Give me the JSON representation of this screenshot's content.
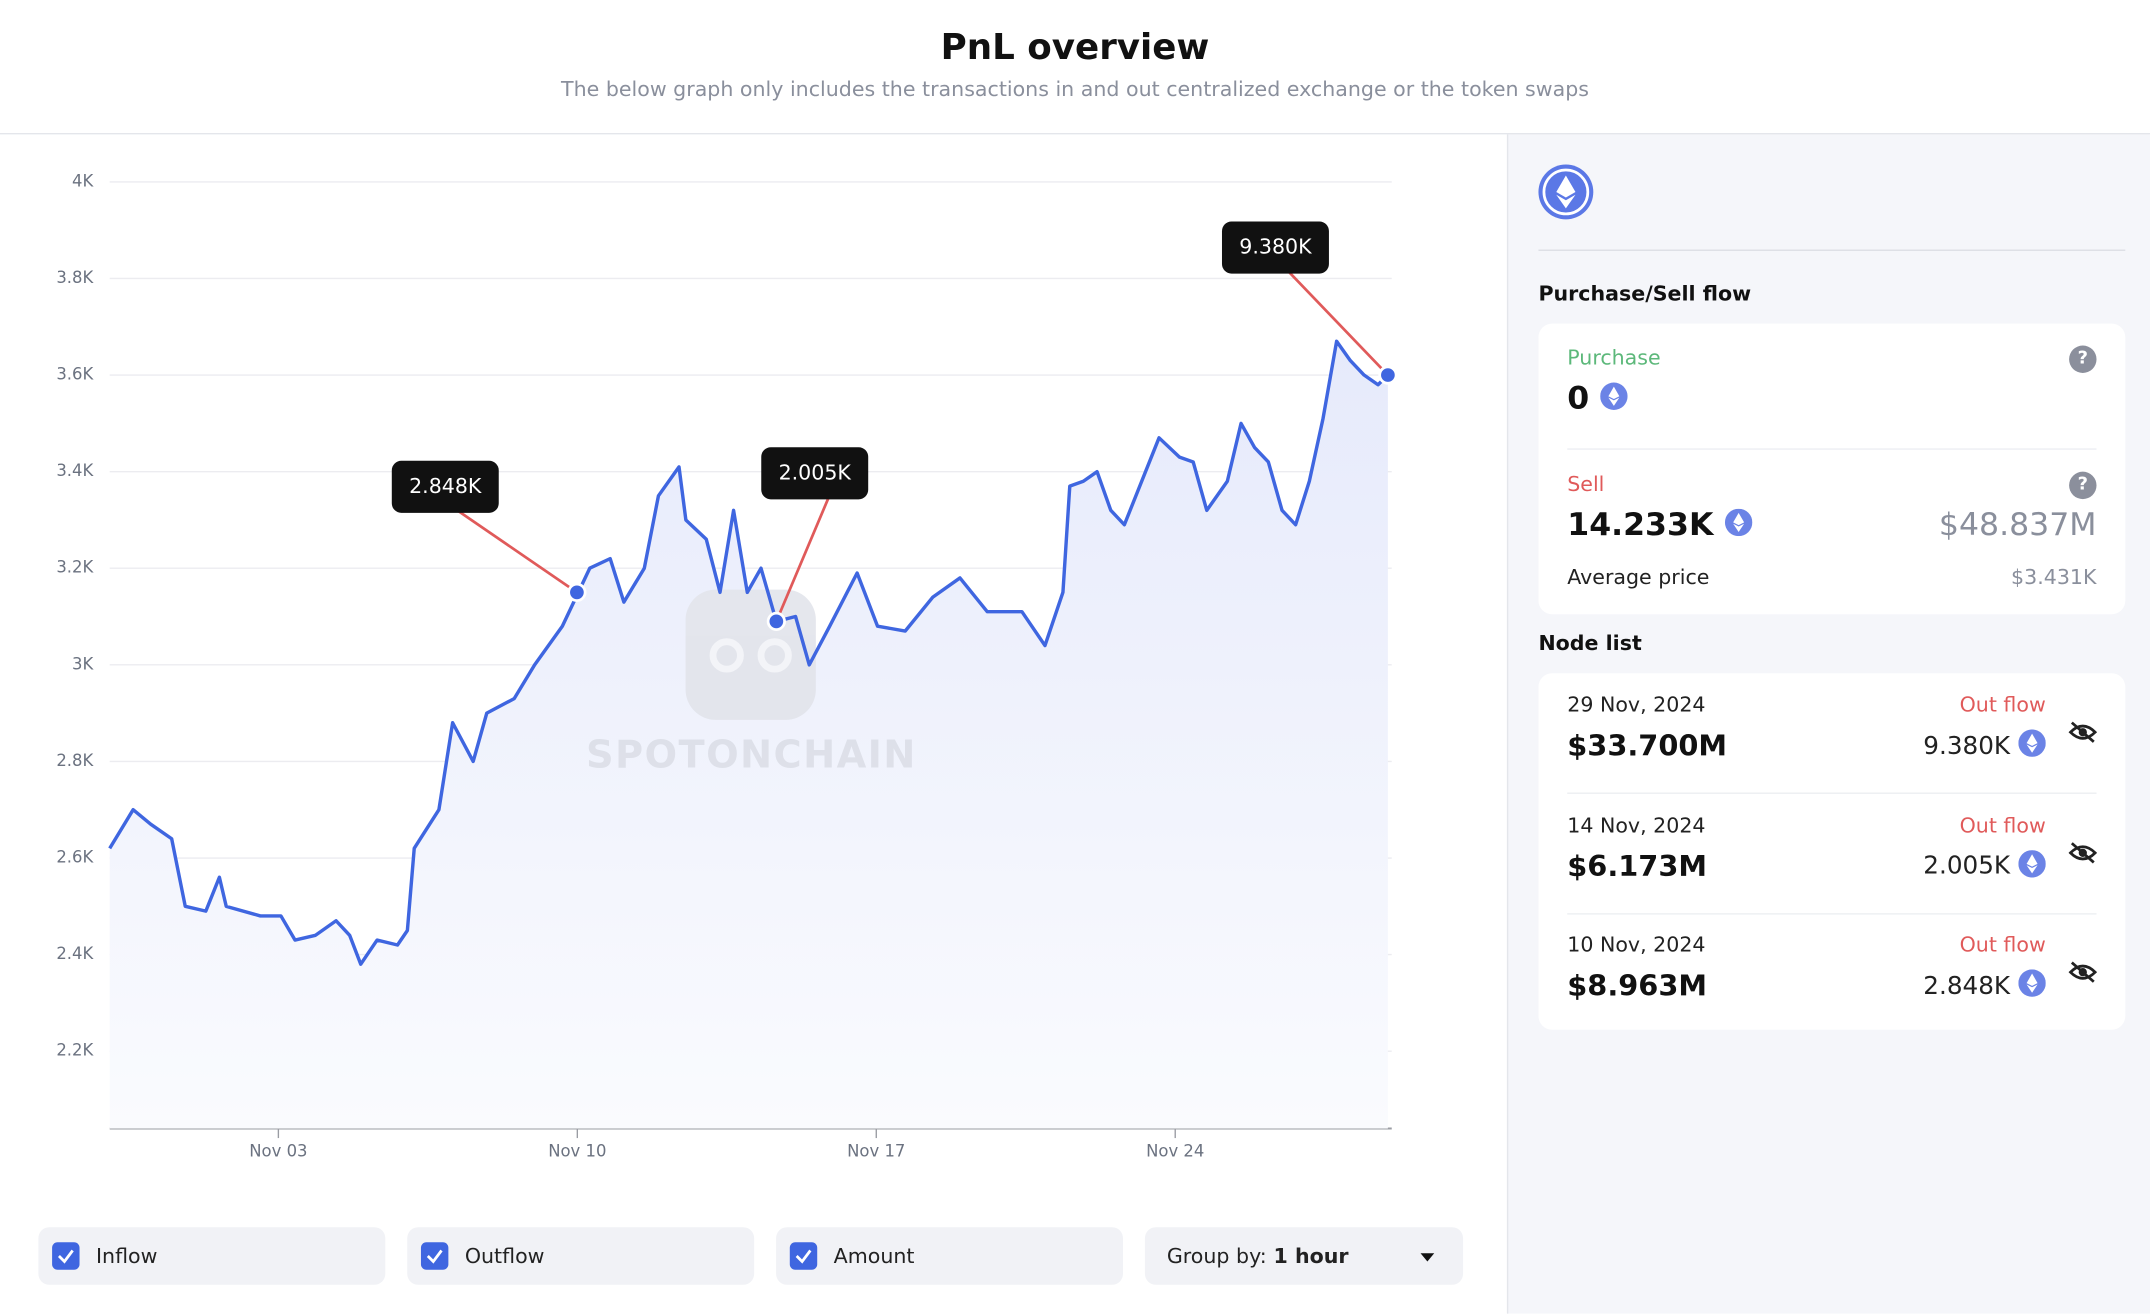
{
  "header": {
    "title": "PnL overview",
    "subtitle": "The below graph only includes the transactions in and out centralized exchange or the token swaps"
  },
  "chart_data": {
    "type": "line",
    "watermark": "SPOTONCHAIN",
    "color": "#3f66e0",
    "grid": true,
    "x": [
      -0.95,
      -0.4,
      0.01,
      0.5,
      0.82,
      1.3,
      1.62,
      1.78,
      2.58,
      3.06,
      3.39,
      3.87,
      4.35,
      4.67,
      4.93,
      5.31,
      5.79,
      6.02,
      6.18,
      6.76,
      7.08,
      7.56,
      7.88,
      8.52,
      9.0,
      9.65,
      9.97,
      10.29,
      10.77,
      11.09,
      11.57,
      11.9,
      12.38,
      12.54,
      13.02,
      13.34,
      13.66,
      13.98,
      14.3,
      14.66,
      15.11,
      15.43,
      15.91,
      16.55,
      17.03,
      17.68,
      18.32,
      18.96,
      19.6,
      20.41,
      20.95,
      21.37,
      21.53,
      21.85,
      22.17,
      22.49,
      22.81,
      23.62,
      24.1,
      24.42,
      24.74,
      25.22,
      25.54,
      25.86,
      26.18,
      26.5,
      26.82,
      27.14,
      27.46,
      27.78,
      28.1,
      28.42,
      28.75,
      28.98
    ],
    "values": [
      2620,
      2700,
      2670,
      2640,
      2500,
      2490,
      2560,
      2500,
      2480,
      2480,
      2430,
      2440,
      2470,
      2440,
      2380,
      2430,
      2420,
      2450,
      2620,
      2700,
      2880,
      2800,
      2900,
      2930,
      3000,
      3080,
      3140,
      3200,
      3220,
      3130,
      3200,
      3350,
      3410,
      3300,
      3260,
      3150,
      3320,
      3150,
      3200,
      3090,
      3100,
      3000,
      3080,
      3190,
      3080,
      3070,
      3140,
      3180,
      3110,
      3110,
      3040,
      3150,
      3370,
      3380,
      3400,
      3320,
      3290,
      3470,
      3430,
      3420,
      3320,
      3380,
      3500,
      3450,
      3420,
      3320,
      3290,
      3380,
      3510,
      3670,
      3630,
      3600,
      3580,
      3600
    ],
    "xlim": [
      -0.95,
      29.07
    ],
    "xticks": [
      {
        "value": 3,
        "label": "Nov 03"
      },
      {
        "value": 10,
        "label": "Nov 10"
      },
      {
        "value": 17,
        "label": "Nov 17"
      },
      {
        "value": 24,
        "label": "Nov 24"
      }
    ],
    "ylim": [
      2040,
      4020
    ],
    "yticks": [
      {
        "value": 2200,
        "label": "2.2K"
      },
      {
        "value": 2400,
        "label": "2.4K"
      },
      {
        "value": 2600,
        "label": "2.6K"
      },
      {
        "value": 2800,
        "label": "2.8K"
      },
      {
        "value": 3000,
        "label": "3K"
      },
      {
        "value": 3200,
        "label": "3.2K"
      },
      {
        "value": 3400,
        "label": "3.4K"
      },
      {
        "value": 3600,
        "label": "3.6K"
      },
      {
        "value": 3800,
        "label": "3.8K"
      },
      {
        "value": 4000,
        "label": "4K"
      }
    ],
    "annotations": [
      {
        "x": 9.99,
        "y": 3150,
        "label": "2.848K"
      },
      {
        "x": 14.66,
        "y": 3090,
        "label": "2.005K"
      },
      {
        "x": 28.98,
        "y": 3600,
        "label": "9.380K"
      }
    ]
  },
  "controls": {
    "checkboxes": [
      "Inflow",
      "Outflow",
      "Amount"
    ],
    "group_by_label": "Group by:",
    "group_by_value": "1 hour"
  },
  "panel": {
    "flow_title": "Purchase/Sell flow",
    "purchase_label": "Purchase",
    "purchase_amount": "0",
    "sell_label": "Sell",
    "sell_amount": "14.233K",
    "sell_value": "$48.837M",
    "avg_label": "Average price",
    "avg_price": "$3.431K",
    "node_title": "Node list",
    "nodes": [
      {
        "date": "29 Nov, 2024",
        "flow": "Out flow",
        "value": "$33.700M",
        "amount": "9.380K"
      },
      {
        "date": "14 Nov, 2024",
        "flow": "Out flow",
        "value": "$6.173M",
        "amount": "2.005K"
      },
      {
        "date": "10 Nov, 2024",
        "flow": "Out flow",
        "value": "$8.963M",
        "amount": "2.848K"
      }
    ]
  }
}
